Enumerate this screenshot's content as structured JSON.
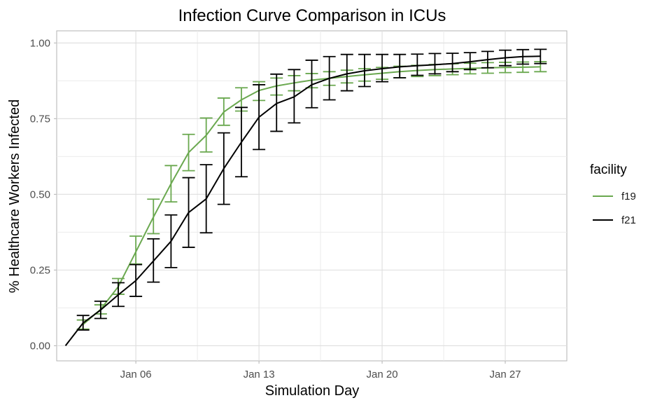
{
  "chart_data": {
    "type": "line",
    "title": "Infection Curve Comparison in ICUs",
    "xlabel": "Simulation Day",
    "ylabel": "% Healthcare Workers Infected",
    "x_range": [
      "2021-01-01T12:00",
      "2021-01-30T12:00"
    ],
    "ylim": [
      -0.05,
      1.04
    ],
    "x_ticks": [
      {
        "date": "2021-01-06",
        "label": "Jan 06"
      },
      {
        "date": "2021-01-13",
        "label": "Jan 13"
      },
      {
        "date": "2021-01-20",
        "label": "Jan 20"
      },
      {
        "date": "2021-01-27",
        "label": "Jan 27"
      }
    ],
    "y_ticks": [
      {
        "value": 0.0,
        "label": "0.00"
      },
      {
        "value": 0.25,
        "label": "0.25"
      },
      {
        "value": 0.5,
        "label": "0.50"
      },
      {
        "value": 0.75,
        "label": "0.75"
      },
      {
        "value": 1.0,
        "label": "1.00"
      }
    ],
    "grid": true,
    "legend": {
      "title": "facility",
      "position": "right"
    },
    "series": [
      {
        "name": "f19",
        "color": "#6aa84f",
        "dates": [
          "2021-01-03",
          "2021-01-04",
          "2021-01-05",
          "2021-01-06",
          "2021-01-07",
          "2021-01-08",
          "2021-01-09",
          "2021-01-10",
          "2021-01-11",
          "2021-01-12",
          "2021-01-13",
          "2021-01-14",
          "2021-01-15",
          "2021-01-16",
          "2021-01-17",
          "2021-01-18",
          "2021-01-19",
          "2021-01-20",
          "2021-01-21",
          "2021-01-22",
          "2021-01-23",
          "2021-01-24",
          "2021-01-25",
          "2021-01-26",
          "2021-01-27",
          "2021-01-28",
          "2021-01-29"
        ],
        "values": [
          0.07,
          0.12,
          0.195,
          0.31,
          0.425,
          0.535,
          0.638,
          0.695,
          0.772,
          0.812,
          0.843,
          0.858,
          0.868,
          0.877,
          0.883,
          0.889,
          0.895,
          0.9,
          0.905,
          0.909,
          0.912,
          0.914,
          0.916,
          0.918,
          0.919,
          0.92,
          0.921
        ],
        "lower": [
          0.055,
          0.105,
          0.17,
          0.27,
          0.37,
          0.475,
          0.578,
          0.64,
          0.728,
          0.775,
          0.81,
          0.828,
          0.842,
          0.852,
          0.86,
          0.868,
          0.874,
          0.88,
          0.885,
          0.889,
          0.892,
          0.895,
          0.898,
          0.9,
          0.902,
          0.903,
          0.905
        ],
        "upper": [
          0.085,
          0.135,
          0.222,
          0.362,
          0.484,
          0.595,
          0.698,
          0.752,
          0.818,
          0.852,
          0.872,
          0.884,
          0.892,
          0.899,
          0.905,
          0.91,
          0.915,
          0.919,
          0.923,
          0.926,
          0.929,
          0.931,
          0.933,
          0.935,
          0.936,
          0.937,
          0.938
        ]
      },
      {
        "name": "f21",
        "color": "#000000",
        "dates": [
          "2021-01-02",
          "2021-01-03",
          "2021-01-04",
          "2021-01-05",
          "2021-01-06",
          "2021-01-07",
          "2021-01-08",
          "2021-01-09",
          "2021-01-10",
          "2021-01-11",
          "2021-01-12",
          "2021-01-13",
          "2021-01-14",
          "2021-01-15",
          "2021-01-16",
          "2021-01-17",
          "2021-01-18",
          "2021-01-19",
          "2021-01-20",
          "2021-01-21",
          "2021-01-22",
          "2021-01-23",
          "2021-01-24",
          "2021-01-25",
          "2021-01-26",
          "2021-01-27",
          "2021-01-28",
          "2021-01-29"
        ],
        "values": [
          0.0,
          0.075,
          0.118,
          0.168,
          0.215,
          0.28,
          0.345,
          0.44,
          0.485,
          0.585,
          0.672,
          0.755,
          0.8,
          0.822,
          0.862,
          0.883,
          0.898,
          0.908,
          0.915,
          0.921,
          0.925,
          0.928,
          0.932,
          0.938,
          0.945,
          0.951,
          0.955,
          0.956
        ],
        "lower": [
          0.0,
          0.052,
          0.09,
          0.13,
          0.163,
          0.21,
          0.258,
          0.325,
          0.373,
          0.467,
          0.558,
          0.648,
          0.708,
          0.736,
          0.786,
          0.812,
          0.842,
          0.856,
          0.872,
          0.885,
          0.893,
          0.898,
          0.905,
          0.912,
          0.918,
          0.925,
          0.93,
          0.932
        ],
        "upper": [
          0.0,
          0.1,
          0.147,
          0.208,
          0.268,
          0.353,
          0.432,
          0.555,
          0.598,
          0.703,
          0.787,
          0.862,
          0.897,
          0.912,
          0.943,
          0.955,
          0.962,
          0.962,
          0.962,
          0.962,
          0.963,
          0.965,
          0.966,
          0.968,
          0.972,
          0.976,
          0.978,
          0.979
        ]
      }
    ]
  }
}
